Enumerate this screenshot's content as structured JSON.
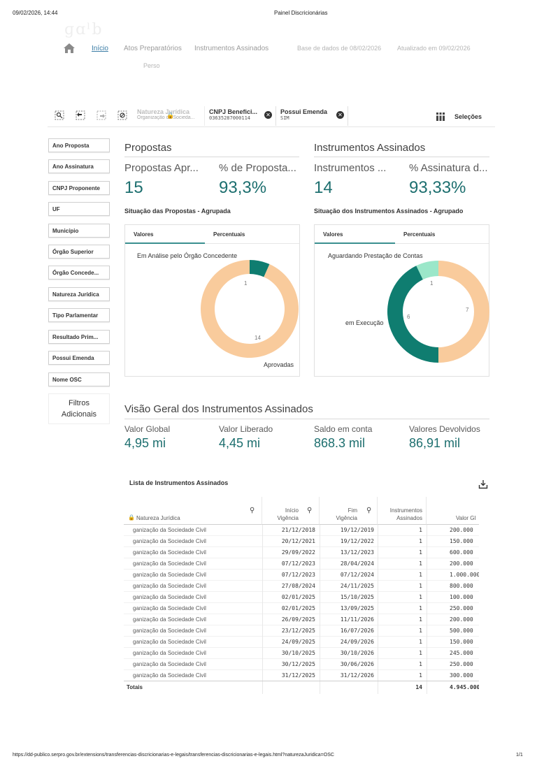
{
  "print": {
    "datetime": "09/02/2026, 14:44",
    "page_title": "Painel Discricionárias",
    "url": "https://dd-publico.serpro.gov.br/extensions/transferencias-discricionarias-e-legais/transferencias-discricionarias-e-legais.html?naturezaJuridica=OSC",
    "page_number": "1/1"
  },
  "nav": {
    "home_icon": "home-icon",
    "links": [
      "Início",
      "Atos Preparatórios",
      "Instrumentos Assinados"
    ],
    "base_dados": "Base de dados de 08/02/2026",
    "atualizado": "Atualizado em 09/02/2026",
    "perso": "Perso"
  },
  "selections": {
    "chips": [
      {
        "title": "Natureza Jurídica",
        "value": "Organização da Socieda...",
        "ghost": true
      },
      {
        "title": "CNPJ Benefici...",
        "value": "03635287000114"
      },
      {
        "title": "Possui Emenda",
        "value": "SIM"
      }
    ],
    "selecoes_label": "Seleções"
  },
  "filters": [
    "Ano Proposta",
    "Ano Assinatura",
    "CNPJ Proponente",
    "UF",
    "Município",
    "Órgão Superior",
    "Órgão Concede...",
    "Natureza Jurídica",
    "Tipo Parlamentar",
    "Resultado Prim...",
    "Possui Emenda",
    "Nome OSC"
  ],
  "filtros_adicionais": [
    "Filtros",
    "Adicionais"
  ],
  "propostas": {
    "title": "Propostas",
    "kpi1_label": "Propostas Apr...",
    "kpi1_value": "15",
    "kpi2_label": "% de Proposta...",
    "kpi2_value": "93,3%",
    "chart_title": "Situação das Propostas - Agrupada",
    "tabs": [
      "Valores",
      "Percentuais"
    ],
    "label_top": "Em Análise pelo Órgão Concedente",
    "label_bottom": "Aprovadas",
    "num_small": "1",
    "num_large": "14"
  },
  "instrumentos": {
    "title": "Instrumentos Assinados",
    "kpi1_label": "Instrumentos ...",
    "kpi1_value": "14",
    "kpi2_label": "% Assinatura d...",
    "kpi2_value": "93,33%",
    "chart_title": "Situação dos Instrumentos Assinados - Agrupado",
    "tabs": [
      "Valores",
      "Percentuais"
    ],
    "label_top": "Aguardando Prestação de Contas",
    "label_left": "em Execução",
    "num_small": "1",
    "num_left": "6",
    "num_right": "7"
  },
  "overview": {
    "title": "Visão Geral dos Instrumentos Assinados",
    "items": [
      {
        "label": "Valor Global",
        "value": "4,95 mi"
      },
      {
        "label": "Valor Liberado",
        "value": "4,45 mi"
      },
      {
        "label": "Saldo em conta",
        "value": "868.3 mil"
      },
      {
        "label": "Valores Devolvidos",
        "value": "86,91 mil"
      }
    ]
  },
  "table": {
    "title": "Lista de Instrumentos Assinados",
    "headers": {
      "natureza": "Natureza Jurídica",
      "inicio": [
        "Início",
        "Vigência"
      ],
      "fim": [
        "Fim",
        "Vigência"
      ],
      "instrumentos": [
        "Instrumentos",
        "Assinados"
      ],
      "valor": "Valor Gl"
    },
    "rows": [
      {
        "natureza": "ganização da Sociedade Civil",
        "inicio": "21/12/2018",
        "fim": "19/12/2019",
        "qtd": "1",
        "valor": "200.000"
      },
      {
        "natureza": "ganização da Sociedade Civil",
        "inicio": "20/12/2021",
        "fim": "19/12/2022",
        "qtd": "1",
        "valor": "150.000"
      },
      {
        "natureza": "ganização da Sociedade Civil",
        "inicio": "29/09/2022",
        "fim": "13/12/2023",
        "qtd": "1",
        "valor": "600.000"
      },
      {
        "natureza": "ganização da Sociedade Civil",
        "inicio": "07/12/2023",
        "fim": "28/04/2024",
        "qtd": "1",
        "valor": "200.000"
      },
      {
        "natureza": "ganização da Sociedade Civil",
        "inicio": "07/12/2023",
        "fim": "07/12/2024",
        "qtd": "1",
        "valor": "1.000.000"
      },
      {
        "natureza": "ganização da Sociedade Civil",
        "inicio": "27/08/2024",
        "fim": "24/11/2025",
        "qtd": "1",
        "valor": "800.000"
      },
      {
        "natureza": "ganização da Sociedade Civil",
        "inicio": "02/01/2025",
        "fim": "15/10/2025",
        "qtd": "1",
        "valor": "100.000"
      },
      {
        "natureza": "ganização da Sociedade Civil",
        "inicio": "02/01/2025",
        "fim": "13/09/2025",
        "qtd": "1",
        "valor": "250.000"
      },
      {
        "natureza": "ganização da Sociedade Civil",
        "inicio": "26/09/2025",
        "fim": "11/11/2026",
        "qtd": "1",
        "valor": "200.000"
      },
      {
        "natureza": "ganização da Sociedade Civil",
        "inicio": "23/12/2025",
        "fim": "16/07/2026",
        "qtd": "1",
        "valor": "500.000"
      },
      {
        "natureza": "ganização da Sociedade Civil",
        "inicio": "24/09/2025",
        "fim": "24/09/2026",
        "qtd": "1",
        "valor": "150.000"
      },
      {
        "natureza": "ganização da Sociedade Civil",
        "inicio": "30/10/2025",
        "fim": "30/10/2026",
        "qtd": "1",
        "valor": "245.000"
      },
      {
        "natureza": "ganização da Sociedade Civil",
        "inicio": "30/12/2025",
        "fim": "30/06/2026",
        "qtd": "1",
        "valor": "250.000"
      },
      {
        "natureza": "ganização da Sociedade Civil",
        "inicio": "31/12/2025",
        "fim": "31/12/2026",
        "qtd": "1",
        "valor": "300.000"
      }
    ],
    "totals": {
      "label": "Totais",
      "qtd": "14",
      "valor": "4.945.000"
    }
  },
  "colors": {
    "teal": "#0f7d70",
    "peach": "#f9cb9c",
    "mint": "#9be7c9",
    "value_text": "#1d6f6f"
  }
}
